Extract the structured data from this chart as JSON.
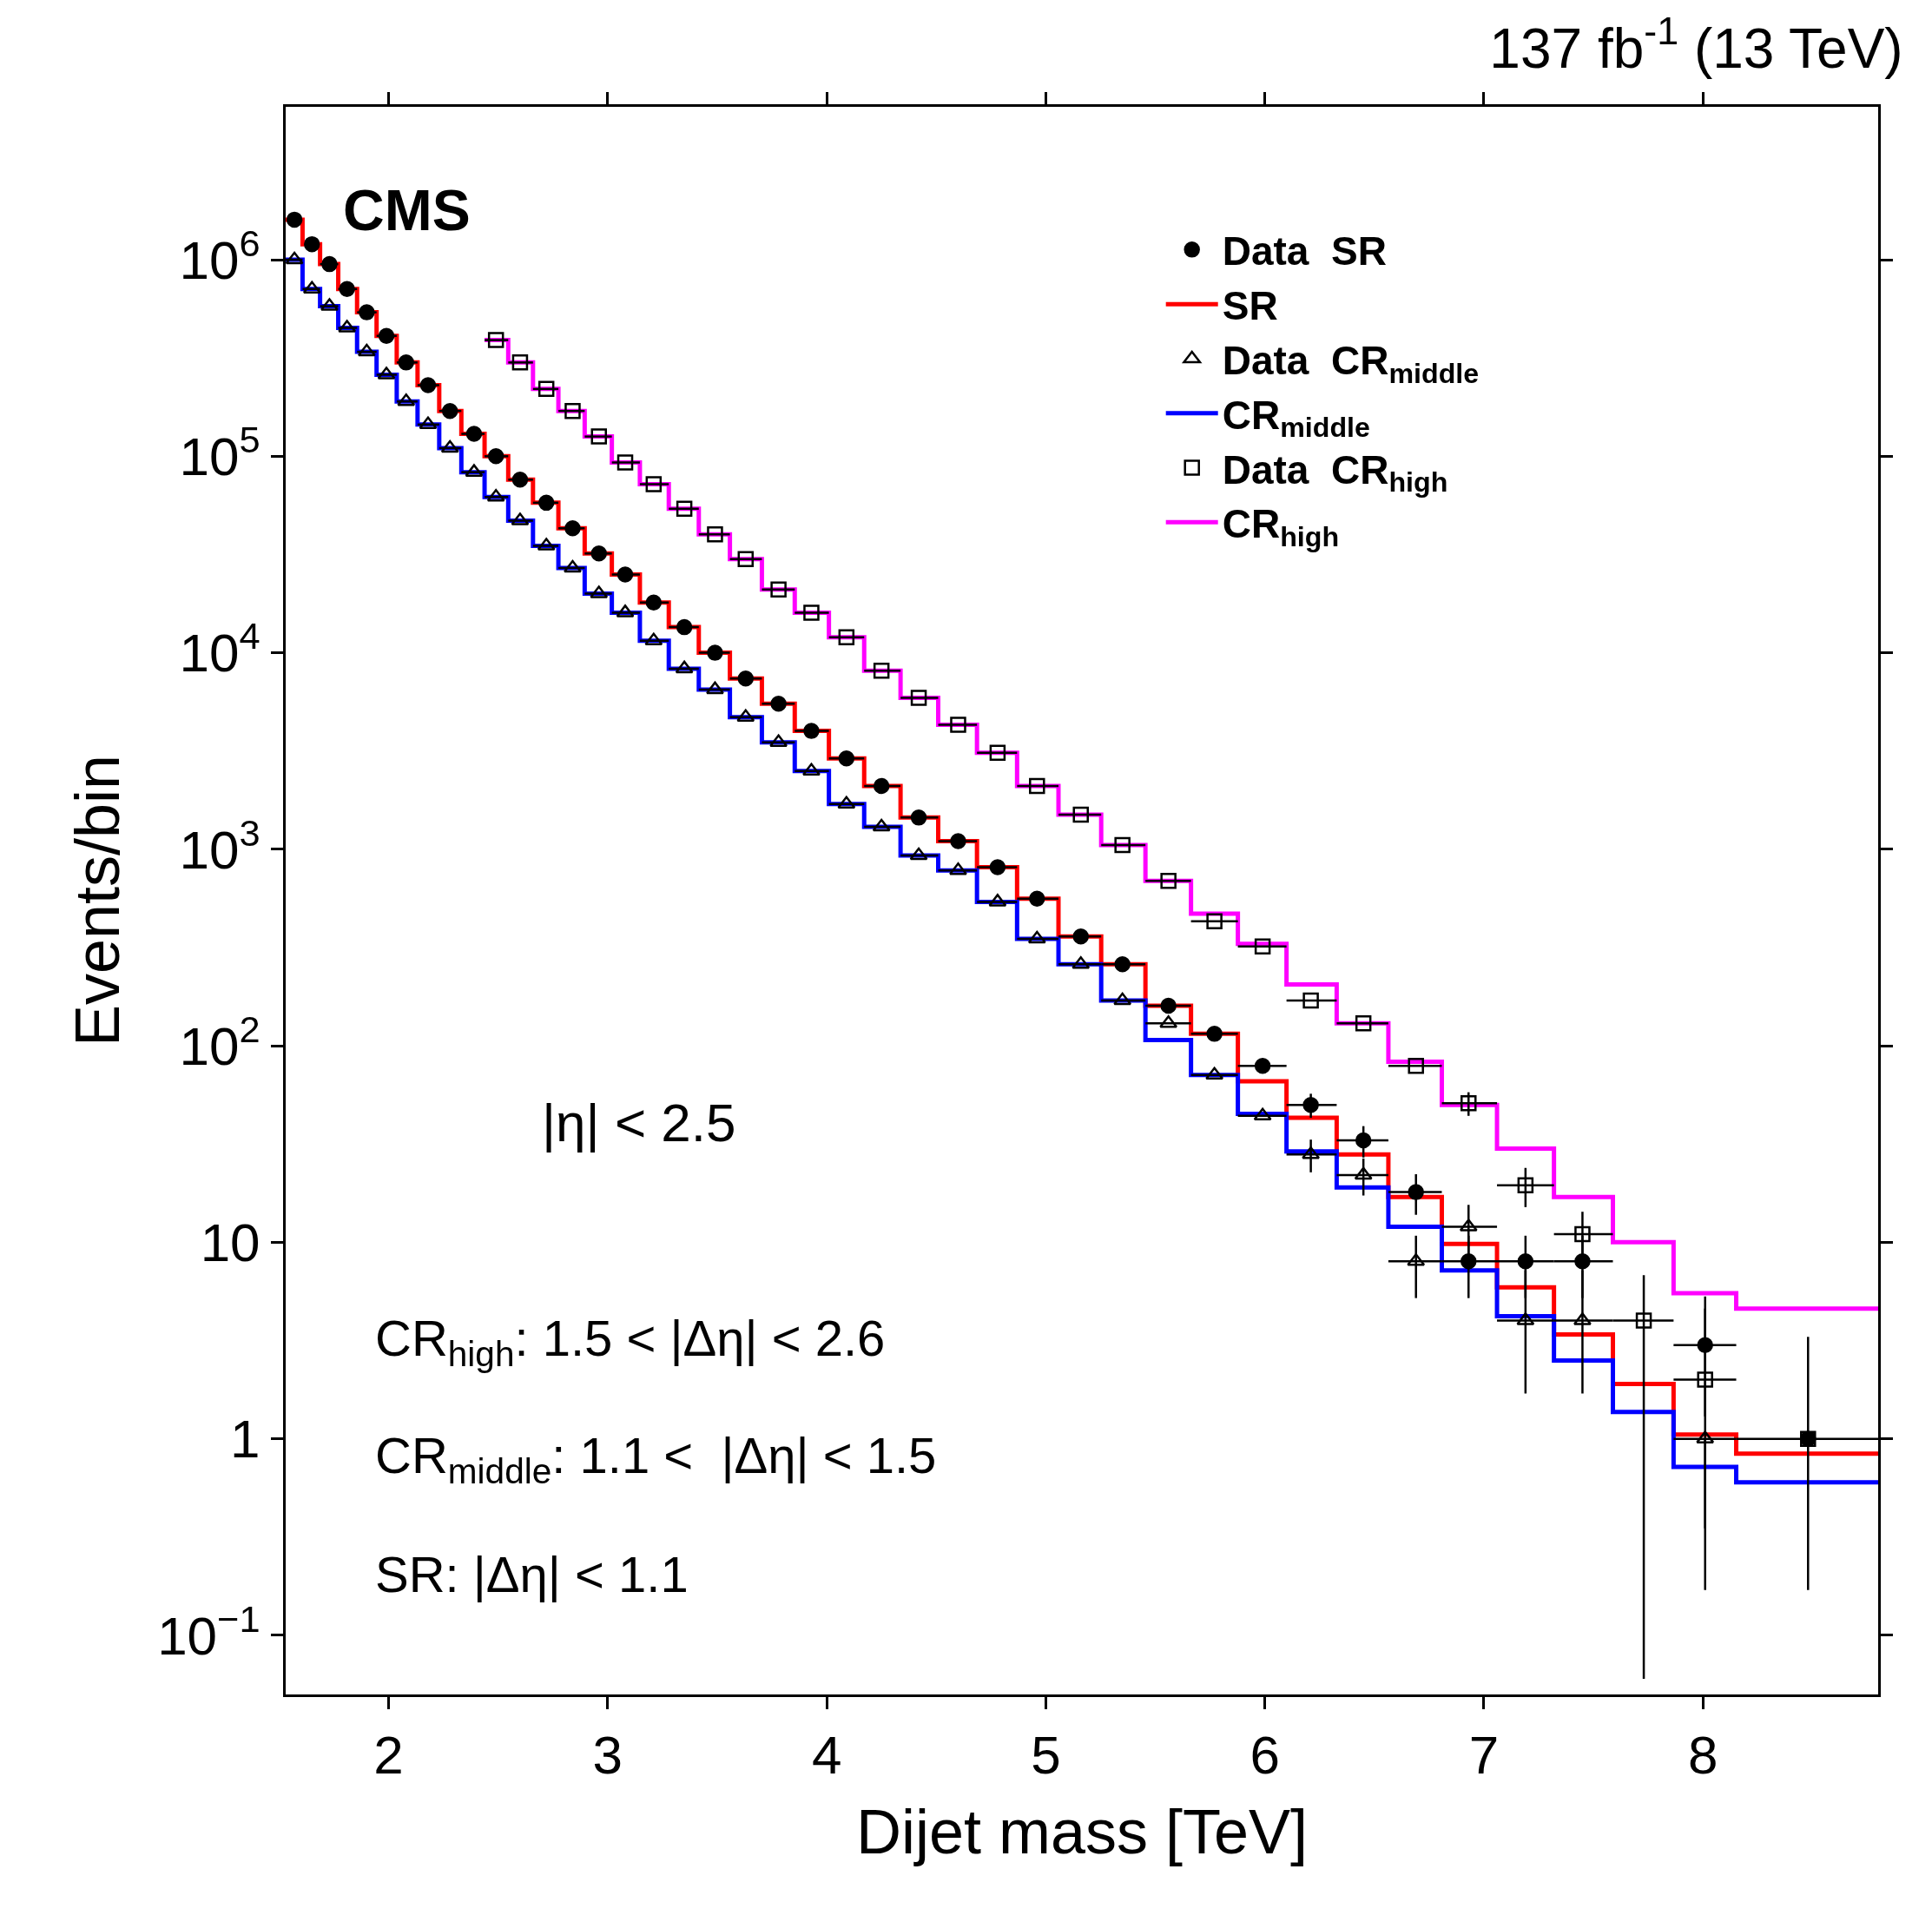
{
  "chart_data": {
    "type": "histogram",
    "title": "137 fb$^{-1}$ (13 TeV)",
    "xlabel": "Dijet mass [TeV]",
    "ylabel": "Events/bin",
    "annotations": [
      "CMS",
      "|η| < 2.5",
      "CR$_{high}$: 1.5 < |Δη| < 2.6",
      "CR$_{middle}$: 1.1 <  |Δη| < 1.5",
      "SR: |Δη| < 1.1"
    ],
    "xlim": [
      1.53,
      8.8
    ],
    "xticks": [
      2,
      3,
      4,
      5,
      6,
      7,
      8
    ],
    "ylim": [
      0.05,
      6000000
    ],
    "yticks": [
      {
        "value": 0.1,
        "label": "10$^{−1}$"
      },
      1,
      10,
      {
        "value": 100,
        "label": "10$^{2}$"
      },
      {
        "value": 1000,
        "label": "10$^{3}$"
      },
      {
        "value": 10000,
        "label": "10$^{4}$"
      },
      {
        "value": 100000,
        "label": "10$^{5}$"
      },
      {
        "value": 1000000,
        "label": "10$^{6}$"
      }
    ],
    "log": "y",
    "grid": false,
    "legend": "top right",
    "series": [
      {
        "type": "scatter",
        "name": "Data  SR",
        "color": "#000000",
        "marker": "circle",
        "x": [
          1.57,
          1.65,
          1.73,
          1.81,
          1.9,
          1.99,
          2.08,
          2.18,
          2.28,
          2.39,
          2.49,
          2.6,
          2.72,
          2.84,
          2.96,
          3.08,
          3.21,
          3.35,
          3.49,
          3.63,
          3.78,
          3.93,
          4.09,
          4.25,
          4.42,
          4.6,
          4.78,
          4.96,
          5.16,
          5.35,
          5.56,
          5.77,
          5.99,
          6.21,
          6.45,
          6.69,
          6.93,
          7.19,
          7.45,
          7.73,
          8.01,
          8.48
        ],
        "values": [
          1600000,
          1200000,
          950000,
          710000,
          540000,
          410000,
          300000,
          230000,
          170000,
          130000,
          100000,
          76000,
          58000,
          43000,
          32000,
          25000,
          18000,
          13500,
          10000,
          7400,
          5500,
          4000,
          2900,
          2100,
          1450,
          1100,
          810,
          560,
          360,
          260,
          160,
          115,
          79,
          50,
          33,
          18,
          8,
          8,
          8,
          null,
          3,
          1
        ],
        "errors": [
          null,
          null,
          null,
          null,
          null,
          null,
          null,
          null,
          null,
          null,
          null,
          null,
          null,
          null,
          null,
          null,
          null,
          null,
          null,
          null,
          null,
          null,
          null,
          null,
          null,
          null,
          null,
          null,
          null,
          null,
          null,
          null,
          null,
          7,
          6,
          4.2,
          2.8,
          2.8,
          2.8,
          null,
          [
            1.3,
            5.3
          ],
          [
            0.17,
            3.3
          ]
        ],
        "xerrors": [
          null,
          null,
          [
            1.687,
            1.77
          ],
          [
            1.77,
            1.856
          ],
          [
            1.856,
            1.945
          ],
          [
            1.945,
            2.037
          ],
          [
            2.037,
            2.132
          ],
          [
            2.132,
            2.231
          ],
          [
            2.231,
            2.332
          ],
          [
            2.332,
            2.438
          ],
          [
            2.438,
            2.546
          ],
          [
            2.546,
            2.659
          ],
          [
            2.659,
            2.775
          ],
          [
            2.775,
            2.895
          ],
          [
            2.895,
            3.019
          ],
          [
            3.019,
            3.147
          ],
          [
            3.147,
            3.279
          ],
          [
            3.279,
            3.416
          ],
          [
            3.416,
            3.558
          ],
          [
            3.558,
            3.704
          ],
          [
            3.704,
            3.854
          ],
          [
            3.854,
            4.01
          ],
          [
            4.01,
            4.171
          ],
          [
            4.171,
            4.337
          ],
          [
            4.337,
            4.509
          ],
          [
            4.509,
            4.686
          ],
          [
            4.686,
            4.869
          ],
          [
            4.869,
            5.058
          ],
          [
            5.058,
            5.253
          ],
          [
            5.253,
            5.455
          ],
          [
            5.455,
            5.663
          ],
          [
            5.663,
            5.877
          ],
          [
            5.877,
            6.099
          ],
          [
            6.099,
            6.328
          ],
          [
            6.328,
            6.564
          ],
          [
            6.564,
            6.808
          ],
          [
            6.808,
            7.06
          ],
          [
            7.06,
            7.32
          ],
          [
            7.32,
            7.589
          ],
          null,
          [
            7.866,
            8.152
          ],
          [
            8.152,
            8.8
          ]
        ]
      },
      {
        "name": "SR",
        "color": "#ff0000",
        "bins": [
          1.53,
          1.607,
          1.687,
          1.77,
          1.856,
          1.945,
          2.037,
          2.132,
          2.231,
          2.332,
          2.438,
          2.546,
          2.659,
          2.775,
          2.895,
          3.019,
          3.147,
          3.279,
          3.416,
          3.558,
          3.704,
          3.854,
          4.01,
          4.171,
          4.337,
          4.509,
          4.686,
          4.869,
          5.058,
          5.253,
          5.455,
          5.663,
          5.877,
          6.099,
          6.328,
          6.564,
          6.808,
          7.06,
          7.32,
          7.589,
          7.866,
          8.152,
          8.8
        ],
        "values": [
          1600000,
          1200000,
          950000,
          710000,
          540000,
          410000,
          300000,
          230000,
          170000,
          130000,
          100000,
          76000,
          58000,
          43000,
          32000,
          25000,
          18000,
          13500,
          10000,
          7400,
          5500,
          4000,
          2900,
          2100,
          1450,
          1100,
          810,
          560,
          360,
          260,
          160,
          115,
          66,
          43,
          28,
          17,
          9.8,
          5.9,
          3.4,
          1.9,
          1.05,
          0.84
        ]
      },
      {
        "type": "scatter",
        "name": "Data  CR$_{middle}$",
        "color": "#000000",
        "marker": "triangle",
        "x": [
          1.57,
          1.65,
          1.73,
          1.81,
          1.9,
          1.99,
          2.08,
          2.18,
          2.28,
          2.39,
          2.49,
          2.6,
          2.72,
          2.84,
          2.96,
          3.08,
          3.21,
          3.35,
          3.49,
          3.63,
          3.78,
          3.93,
          4.09,
          4.25,
          4.42,
          4.6,
          4.78,
          4.96,
          5.16,
          5.35,
          5.56,
          5.77,
          5.99,
          6.21,
          6.45,
          6.69,
          6.93,
          7.19,
          7.45,
          7.73,
          8.01
        ],
        "values": [
          1000000,
          710000,
          580000,
          450000,
          340000,
          260000,
          190000,
          145000,
          110000,
          83000,
          62000,
          47000,
          35000,
          27000,
          20000,
          16000,
          11500,
          8300,
          6500,
          4700,
          3500,
          2500,
          1700,
          1300,
          930,
          780,
          540,
          350,
          260,
          170,
          130,
          71,
          44,
          28,
          22,
          8,
          12,
          4,
          4,
          null,
          1
        ],
        "errors": [
          null,
          null,
          null,
          null,
          null,
          null,
          null,
          null,
          null,
          null,
          null,
          null,
          null,
          null,
          null,
          null,
          null,
          null,
          null,
          null,
          null,
          null,
          null,
          null,
          null,
          null,
          null,
          null,
          null,
          null,
          null,
          null,
          null,
          5.3,
          4.7,
          2.8,
          3.5,
          [
            1.7,
            7.2
          ],
          [
            1.7,
            7.2
          ],
          null,
          [
            0.17,
            1
          ]
        ],
        "xerrors": [
          [
            1.53,
            1.607
          ],
          [
            1.607,
            1.687
          ],
          [
            1.687,
            1.77
          ],
          [
            1.77,
            1.856
          ],
          [
            1.856,
            1.945
          ],
          [
            1.945,
            2.037
          ],
          [
            2.037,
            2.132
          ],
          [
            2.132,
            2.231
          ],
          [
            2.231,
            2.332
          ],
          [
            2.332,
            2.438
          ],
          [
            2.438,
            2.546
          ],
          [
            2.546,
            2.659
          ],
          [
            2.659,
            2.775
          ],
          [
            2.775,
            2.895
          ],
          [
            2.895,
            3.019
          ],
          [
            3.019,
            3.147
          ],
          [
            3.147,
            3.279
          ],
          [
            3.279,
            3.416
          ],
          [
            3.416,
            3.558
          ],
          [
            3.558,
            3.704
          ],
          [
            3.704,
            3.854
          ],
          [
            3.854,
            4.01
          ],
          [
            4.01,
            4.171
          ],
          [
            4.171,
            4.337
          ],
          [
            4.337,
            4.509
          ],
          [
            4.509,
            4.686
          ],
          [
            4.686,
            4.869
          ],
          [
            4.869,
            5.058
          ],
          [
            5.058,
            5.253
          ],
          [
            5.253,
            5.455
          ],
          [
            5.455,
            5.663
          ],
          [
            5.663,
            5.877
          ],
          [
            5.877,
            6.099
          ],
          [
            6.099,
            6.328
          ],
          [
            6.328,
            6.564
          ],
          [
            6.564,
            6.808
          ],
          [
            6.808,
            7.06
          ],
          [
            7.06,
            7.32
          ],
          [
            7.32,
            7.589
          ],
          null,
          [
            7.866,
            8.152
          ]
        ]
      },
      {
        "name": "CR$_{middle}$",
        "color": "#0000ff",
        "bins": [
          1.53,
          1.607,
          1.687,
          1.77,
          1.856,
          1.945,
          2.037,
          2.132,
          2.231,
          2.332,
          2.438,
          2.546,
          2.659,
          2.775,
          2.895,
          3.019,
          3.147,
          3.279,
          3.416,
          3.558,
          3.704,
          3.854,
          4.01,
          4.171,
          4.337,
          4.509,
          4.686,
          4.869,
          5.058,
          5.253,
          5.455,
          5.663,
          5.877,
          6.099,
          6.328,
          6.564,
          6.808,
          7.06,
          7.32,
          7.589,
          7.866,
          8.152,
          8.8
        ],
        "values": [
          1000000,
          710000,
          580000,
          450000,
          340000,
          260000,
          190000,
          145000,
          110000,
          83000,
          62000,
          47000,
          35000,
          27000,
          20000,
          16000,
          11500,
          8300,
          6500,
          4700,
          3500,
          2500,
          1700,
          1300,
          930,
          780,
          540,
          350,
          260,
          170,
          107,
          71,
          45,
          29,
          19,
          12,
          7.2,
          4.2,
          2.5,
          1.37,
          0.72,
          0.6
        ]
      },
      {
        "type": "scatter",
        "name": "Data  CR$_{high}$",
        "color": "#000000",
        "marker": "square",
        "x": [
          2.49,
          2.6,
          2.72,
          2.84,
          2.96,
          3.08,
          3.21,
          3.35,
          3.49,
          3.63,
          3.78,
          3.93,
          4.09,
          4.25,
          4.42,
          4.6,
          4.78,
          4.96,
          5.16,
          5.35,
          5.56,
          5.77,
          5.99,
          6.21,
          6.45,
          6.69,
          6.93,
          7.19,
          7.45,
          7.73,
          8.01,
          8.48
        ],
        "values": [
          390000,
          300000,
          220000,
          170000,
          126000,
          93000,
          72000,
          54000,
          40000,
          30000,
          21000,
          16000,
          12000,
          8100,
          5900,
          4300,
          3100,
          2100,
          1500,
          1050,
          690,
          430,
          320,
          170,
          130,
          79,
          51,
          19.5,
          11,
          4,
          2,
          1
        ],
        "errors": [
          null,
          null,
          null,
          null,
          null,
          null,
          null,
          null,
          null,
          null,
          null,
          null,
          null,
          null,
          null,
          null,
          null,
          null,
          null,
          null,
          null,
          null,
          null,
          null,
          null,
          null,
          7,
          4.4,
          3.3,
          [
            0.06,
            6.8
          ],
          [
            0.35,
            4.6
          ],
          null
        ],
        "xerrors": [
          [
            2.438,
            2.546
          ],
          [
            2.546,
            2.659
          ],
          [
            2.659,
            2.775
          ],
          [
            2.775,
            2.895
          ],
          [
            2.895,
            3.019
          ],
          [
            3.019,
            3.147
          ],
          [
            3.147,
            3.279
          ],
          [
            3.279,
            3.416
          ],
          [
            3.416,
            3.558
          ],
          [
            3.558,
            3.704
          ],
          [
            3.704,
            3.854
          ],
          [
            3.854,
            4.01
          ],
          [
            4.01,
            4.171
          ],
          [
            4.171,
            4.337
          ],
          [
            4.337,
            4.509
          ],
          [
            4.509,
            4.686
          ],
          [
            4.686,
            4.869
          ],
          [
            4.869,
            5.058
          ],
          [
            5.058,
            5.253
          ],
          [
            5.253,
            5.455
          ],
          [
            5.455,
            5.663
          ],
          [
            5.663,
            5.877
          ],
          [
            5.877,
            6.099
          ],
          [
            6.099,
            6.328
          ],
          [
            6.328,
            6.564
          ],
          [
            6.564,
            6.808
          ],
          [
            6.808,
            7.06
          ],
          [
            7.06,
            7.32
          ],
          [
            7.32,
            7.589
          ],
          [
            7.589,
            7.866
          ],
          [
            7.866,
            8.152
          ],
          null
        ]
      },
      {
        "name": "CR$_{high}$",
        "color": "#ff00ff",
        "bins": [
          2.438,
          2.546,
          2.659,
          2.775,
          2.895,
          3.019,
          3.147,
          3.279,
          3.416,
          3.558,
          3.704,
          3.854,
          4.01,
          4.171,
          4.337,
          4.509,
          4.686,
          4.869,
          5.058,
          5.253,
          5.455,
          5.663,
          5.877,
          6.099,
          6.328,
          6.564,
          6.808,
          7.06,
          7.32,
          7.589,
          7.866,
          8.152,
          8.8
        ],
        "values": [
          390000,
          300000,
          220000,
          170000,
          126000,
          93000,
          72000,
          54000,
          40000,
          30000,
          21000,
          16000,
          12000,
          8100,
          5900,
          4300,
          3100,
          2100,
          1500,
          1050,
          690,
          470,
          330,
          205,
          130,
          83,
          50,
          30,
          17,
          10,
          5.5,
          4.6
        ]
      }
    ]
  }
}
